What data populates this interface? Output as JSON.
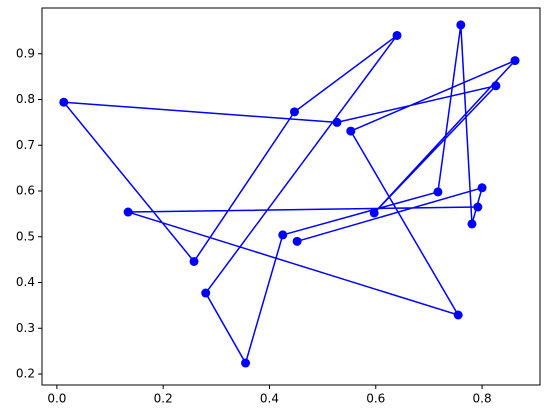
{
  "chart_data": {
    "type": "line",
    "x": [
      0.452,
      0.8,
      0.781,
      0.76,
      0.717,
      0.425,
      0.355,
      0.28,
      0.64,
      0.447,
      0.258,
      0.013,
      0.527,
      0.826,
      0.597,
      0.862,
      0.553,
      0.755,
      0.134,
      0.792
    ],
    "series": [
      {
        "color": "#0000ff",
        "values": [
          0.49,
          0.607,
          0.528,
          0.963,
          0.598,
          0.504,
          0.224,
          0.377,
          0.94,
          0.773,
          0.446,
          0.794,
          0.75,
          0.83,
          0.552,
          0.885,
          0.731,
          0.329,
          0.554,
          0.565
        ]
      }
    ],
    "xlim": [
      -0.028,
      0.909
    ],
    "ylim": [
      0.176,
      1.0
    ],
    "xticks": [
      {
        "value": 0,
        "label": "0.0"
      },
      0.2,
      0.4,
      0.6,
      0.8
    ],
    "yticks": [
      0.2,
      0.3,
      0.4,
      0.5,
      0.6,
      0.7,
      0.8,
      0.9
    ],
    "grid": false,
    "markers": true
  }
}
